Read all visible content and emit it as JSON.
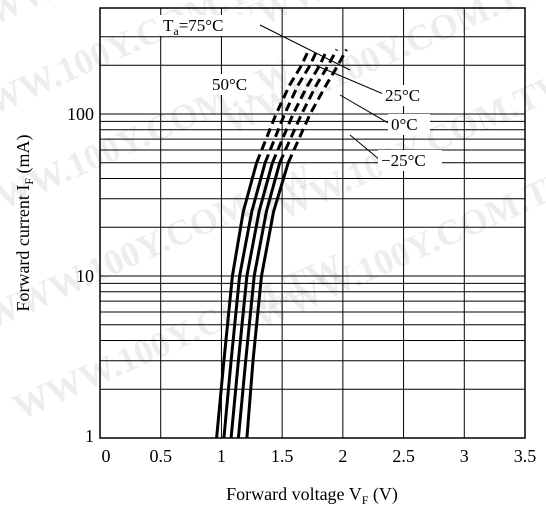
{
  "watermark": "WWW.100Y.COM.TW",
  "chart_data": {
    "type": "line",
    "xlabel": "Forward voltage V_F (V)",
    "ylabel": "Forward current I_F (mA)",
    "xlim": [
      0,
      3.5
    ],
    "ylim": [
      1,
      300
    ],
    "y_scale": "log",
    "x_ticks": [
      "0",
      "0.5",
      "1",
      "1.5",
      "2",
      "2.5",
      "3",
      "3.5"
    ],
    "y_ticks": [
      {
        "label": "1",
        "value": 1
      },
      {
        "label": "10",
        "value": 10
      },
      {
        "label": "100",
        "value": 100
      }
    ],
    "grid": true,
    "legend_note": "Curves are solid up to about 50 mA and dashed above.",
    "series": [
      {
        "name": "Ta=75°C",
        "label_text": "Ta=75°C",
        "points": [
          [
            0.96,
            1
          ],
          [
            1.02,
            3
          ],
          [
            1.09,
            10
          ],
          [
            1.18,
            25
          ],
          [
            1.29,
            50
          ],
          [
            1.45,
            100
          ],
          [
            1.56,
            150
          ],
          [
            1.66,
            200
          ],
          [
            1.72,
            250
          ]
        ]
      },
      {
        "name": "50°C",
        "label_text": "50°C",
        "points": [
          [
            1.02,
            1
          ],
          [
            1.08,
            3
          ],
          [
            1.15,
            10
          ],
          [
            1.25,
            25
          ],
          [
            1.36,
            50
          ],
          [
            1.52,
            100
          ],
          [
            1.63,
            150
          ],
          [
            1.73,
            200
          ],
          [
            1.79,
            250
          ]
        ]
      },
      {
        "name": "25°C",
        "label_text": "25°C",
        "points": [
          [
            1.08,
            1
          ],
          [
            1.14,
            3
          ],
          [
            1.21,
            10
          ],
          [
            1.31,
            25
          ],
          [
            1.42,
            50
          ],
          [
            1.59,
            100
          ],
          [
            1.71,
            150
          ],
          [
            1.81,
            200
          ],
          [
            1.87,
            250
          ]
        ]
      },
      {
        "name": "0°C",
        "label_text": "0°C",
        "points": [
          [
            1.14,
            1
          ],
          [
            1.2,
            3
          ],
          [
            1.27,
            10
          ],
          [
            1.37,
            25
          ],
          [
            1.48,
            50
          ],
          [
            1.66,
            100
          ],
          [
            1.78,
            150
          ],
          [
            1.88,
            200
          ],
          [
            1.95,
            250
          ]
        ]
      },
      {
        "name": "-25°C",
        "label_text": "−25°C",
        "points": [
          [
            1.21,
            1
          ],
          [
            1.26,
            3
          ],
          [
            1.33,
            10
          ],
          [
            1.43,
            25
          ],
          [
            1.55,
            50
          ],
          [
            1.73,
            100
          ],
          [
            1.86,
            150
          ],
          [
            1.96,
            200
          ],
          [
            2.03,
            250
          ]
        ]
      }
    ],
    "dash_above": 50
  }
}
